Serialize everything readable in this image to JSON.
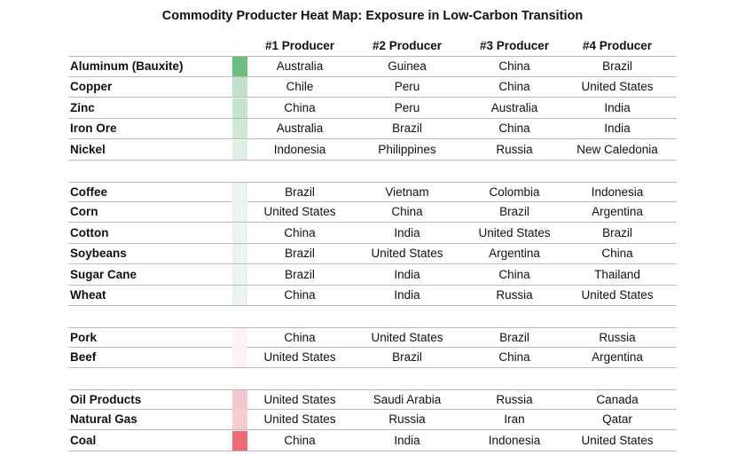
{
  "chart_data": {
    "type": "table",
    "title": "Commodity Producter Heat Map: Exposure in Low-Carbon Transition",
    "columns": [
      "#1 Producer",
      "#2 Producer",
      "#3 Producer",
      "#4 Producer"
    ],
    "groups": [
      {
        "rows": [
          {
            "commodity": "Aluminum (Bauxite)",
            "color": "#6cbf80",
            "producers": [
              "Australia",
              "Guinea",
              "China",
              "Brazil"
            ]
          },
          {
            "commodity": "Copper",
            "color": "#bfe3c9",
            "producers": [
              "Chile",
              "Peru",
              "China",
              "United States"
            ]
          },
          {
            "commodity": "Zinc",
            "color": "#c3e5cc",
            "producers": [
              "China",
              "Peru",
              "Australia",
              "India"
            ]
          },
          {
            "commodity": "Iron Ore",
            "color": "#cde9d4",
            "producers": [
              "Australia",
              "Brazil",
              "China",
              "India"
            ]
          },
          {
            "commodity": "Nickel",
            "color": "#deefe3",
            "producers": [
              "Indonesia",
              "Philippines",
              "Russia",
              "New Caledonia"
            ]
          }
        ]
      },
      {
        "rows": [
          {
            "commodity": "Coffee",
            "color": "#e8f4ec",
            "producers": [
              "Brazil",
              "Vietnam",
              "Colombia",
              "Indonesia"
            ]
          },
          {
            "commodity": "Corn",
            "color": "#e8f4ec",
            "producers": [
              "United States",
              "China",
              "Brazil",
              "Argentina"
            ]
          },
          {
            "commodity": "Cotton",
            "color": "#e8f4ec",
            "producers": [
              "China",
              "India",
              "United States",
              "Brazil"
            ]
          },
          {
            "commodity": "Soybeans",
            "color": "#e8f4ec",
            "producers": [
              "Brazil",
              "United States",
              "Argentina",
              "China"
            ]
          },
          {
            "commodity": "Sugar Cane",
            "color": "#e8f4ec",
            "producers": [
              "Brazil",
              "India",
              "China",
              "Thailand"
            ]
          },
          {
            "commodity": "Wheat",
            "color": "#e8f4ec",
            "producers": [
              "China",
              "India",
              "Russia",
              "United States"
            ]
          }
        ]
      },
      {
        "rows": [
          {
            "commodity": "Pork",
            "color": "#fcf3f4",
            "producers": [
              "China",
              "United States",
              "Brazil",
              "Russia"
            ]
          },
          {
            "commodity": "Beef",
            "color": "#fcf3f4",
            "producers": [
              "United States",
              "Brazil",
              "China",
              "Argentina"
            ]
          }
        ]
      },
      {
        "rows": [
          {
            "commodity": "Oil Products",
            "color": "#f6c7cc",
            "producers": [
              "United States",
              "Saudi Arabia",
              "Russia",
              "Canada"
            ]
          },
          {
            "commodity": "Natural Gas",
            "color": "#f7ccd1",
            "producers": [
              "United States",
              "Russia",
              "Iran",
              "Qatar"
            ]
          },
          {
            "commodity": "Coal",
            "color": "#ef6b72",
            "producers": [
              "China",
              "India",
              "Indonesia",
              "United States"
            ]
          }
        ]
      }
    ]
  }
}
